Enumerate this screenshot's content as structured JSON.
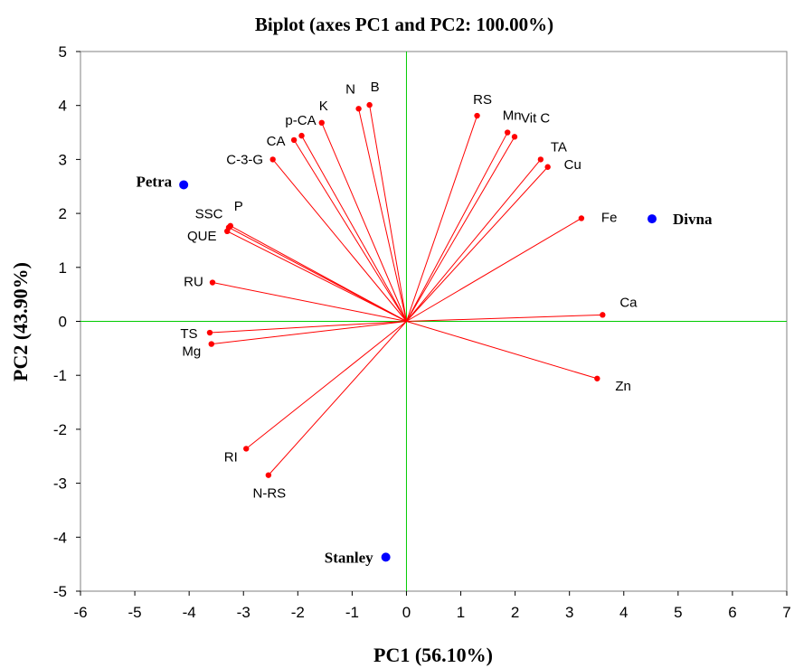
{
  "chart_data": {
    "type": "scatter",
    "title": "Biplot (axes PC1 and PC2: 100.00%)",
    "xlabel": "PC1 (56.10%)",
    "ylabel": "PC2 (43.90%)",
    "xlim": [
      -6,
      7
    ],
    "ylim": [
      -5,
      5
    ],
    "xticks": [
      "-6",
      "-5",
      "-4",
      "-3",
      "-2",
      "-1",
      "0",
      "1",
      "2",
      "3",
      "4",
      "5",
      "6",
      "7"
    ],
    "yticks": [
      "5",
      "4",
      "3",
      "2",
      "1",
      "0",
      "-1",
      "-2",
      "-3",
      "-4",
      "-5"
    ],
    "grid": false,
    "colors": {
      "variables": "#ff0000",
      "observations": "#0000ff",
      "zero_lines": "#00cc00",
      "frame": "#808080"
    },
    "variables": [
      {
        "name": "N",
        "x": -0.88,
        "y": 3.94
      },
      {
        "name": "B",
        "x": -0.68,
        "y": 4.01
      },
      {
        "name": "K",
        "x": -1.56,
        "y": 3.68
      },
      {
        "name": "p-CA",
        "x": -1.93,
        "y": 3.44
      },
      {
        "name": "CA",
        "x": -2.07,
        "y": 3.36
      },
      {
        "name": "C-3-G",
        "x": -2.46,
        "y": 3.0
      },
      {
        "name": "P",
        "x": -3.24,
        "y": 1.77
      },
      {
        "name": "SSC",
        "x": -3.27,
        "y": 1.74
      },
      {
        "name": "QUE",
        "x": -3.3,
        "y": 1.67
      },
      {
        "name": "RU",
        "x": -3.57,
        "y": 0.72
      },
      {
        "name": "TS",
        "x": -3.62,
        "y": -0.21
      },
      {
        "name": "Mg",
        "x": -3.59,
        "y": -0.42
      },
      {
        "name": "RI",
        "x": -2.95,
        "y": -2.36
      },
      {
        "name": "N-RS",
        "x": -2.54,
        "y": -2.85
      },
      {
        "name": "RS",
        "x": 1.3,
        "y": 3.81
      },
      {
        "name": "Mn",
        "x": 1.86,
        "y": 3.5
      },
      {
        "name": "Vit C",
        "x": 1.99,
        "y": 3.42
      },
      {
        "name": "TA",
        "x": 2.47,
        "y": 3.0
      },
      {
        "name": "Cu",
        "x": 2.6,
        "y": 2.86
      },
      {
        "name": "Fe",
        "x": 3.22,
        "y": 1.91
      },
      {
        "name": "Ca",
        "x": 3.61,
        "y": 0.12
      },
      {
        "name": "Zn",
        "x": 3.51,
        "y": -1.06
      }
    ],
    "observations": [
      {
        "name": "Petra",
        "x": -4.1,
        "y": 2.53
      },
      {
        "name": "Divna",
        "x": 4.52,
        "y": 1.9
      },
      {
        "name": "Stanley",
        "x": -0.38,
        "y": -4.37
      }
    ]
  }
}
